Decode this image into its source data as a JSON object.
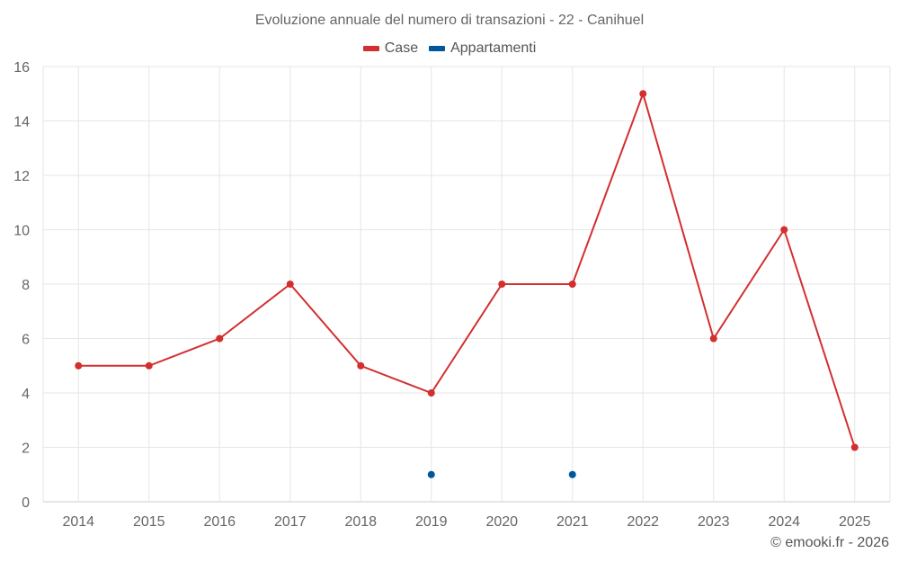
{
  "title": "Evoluzione annuale del numero di transazioni - 22 - Canihuel",
  "footer": "© emooki.fr - 2026",
  "colors": {
    "case": "#d32f2f",
    "appartamenti": "#01579b",
    "grid": "#e6e6e6"
  },
  "legend": [
    {
      "label": "Case",
      "color": "#d32f2f"
    },
    {
      "label": "Appartamenti",
      "color": "#01579b"
    }
  ],
  "chart_data": {
    "type": "line",
    "title": "Evoluzione annuale del numero di transazioni - 22 - Canihuel",
    "categories": [
      "2014",
      "2015",
      "2016",
      "2017",
      "2018",
      "2019",
      "2020",
      "2021",
      "2022",
      "2023",
      "2024",
      "2025"
    ],
    "ylim": [
      0,
      16
    ],
    "yticks": [
      0,
      2,
      4,
      6,
      8,
      10,
      12,
      14,
      16
    ],
    "grid": true,
    "legend_position": "top-center",
    "series": [
      {
        "name": "Case",
        "color": "#d32f2f",
        "line": true,
        "values": [
          5,
          5,
          6,
          8,
          5,
          4,
          8,
          8,
          15,
          6,
          10,
          2
        ]
      },
      {
        "name": "Appartamenti",
        "color": "#01579b",
        "line": false,
        "values": [
          null,
          null,
          null,
          null,
          null,
          1,
          null,
          1,
          null,
          null,
          null,
          null
        ]
      }
    ]
  }
}
